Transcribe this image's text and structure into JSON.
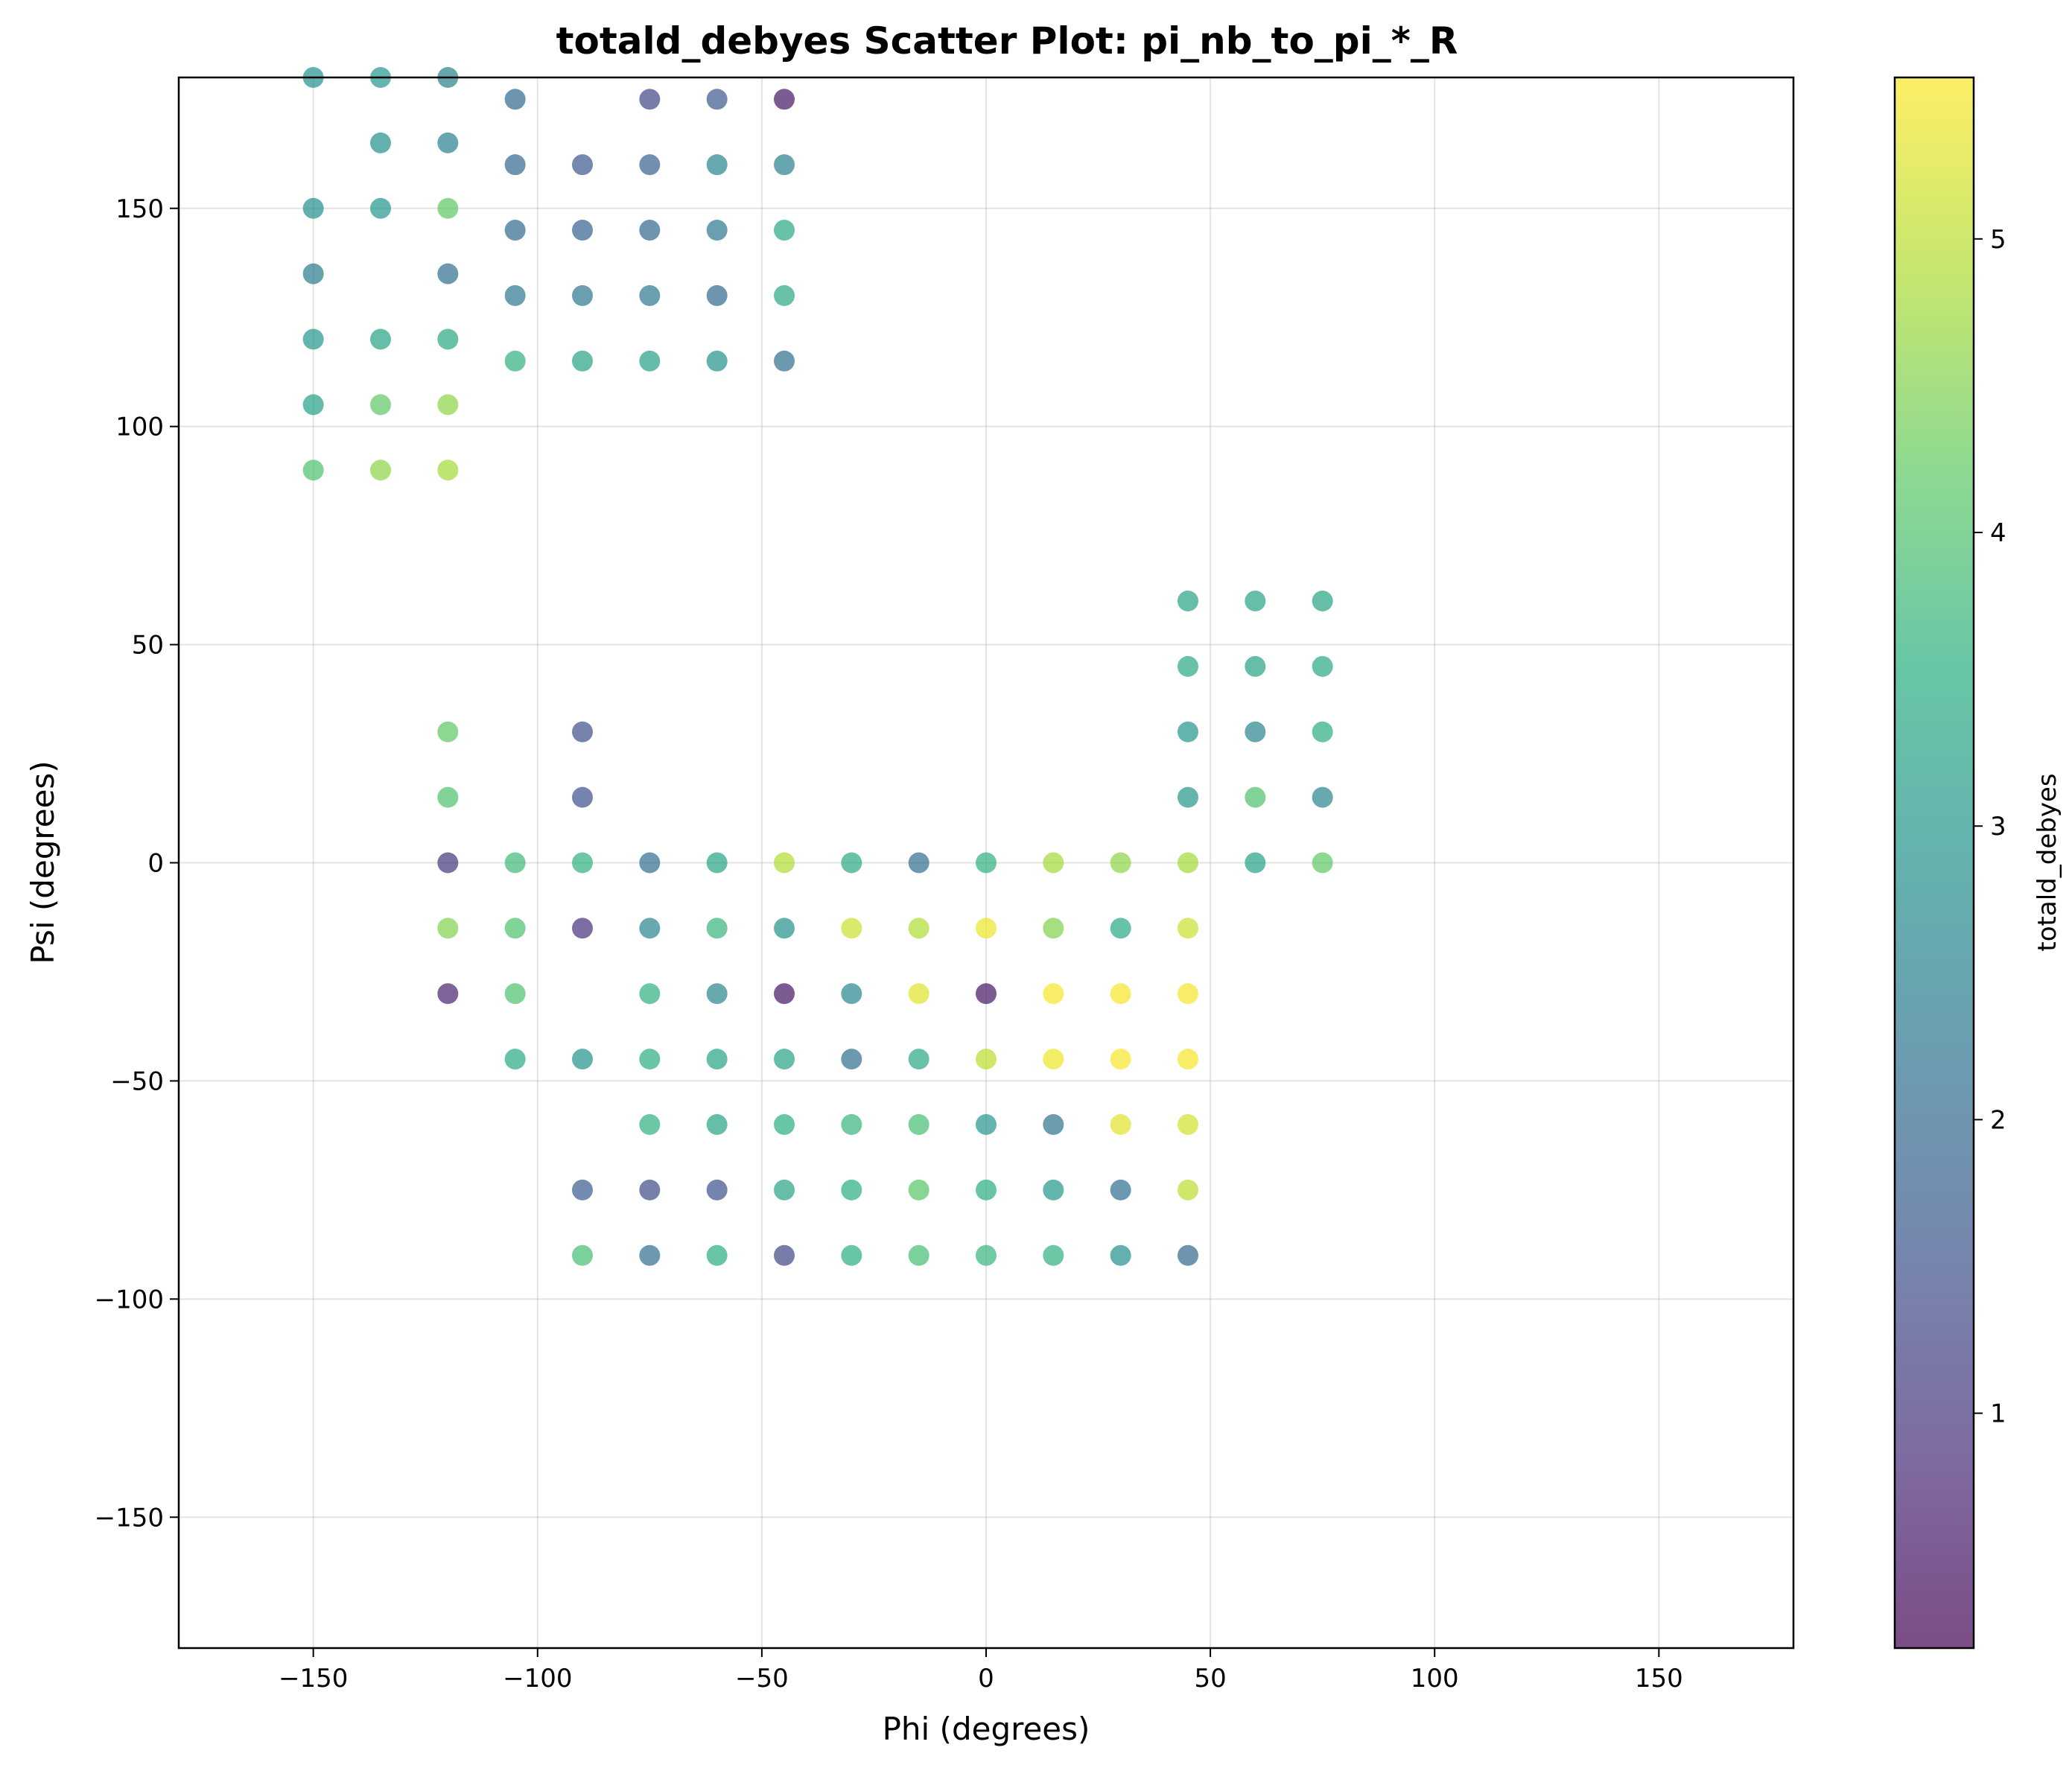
{
  "chart_data": {
    "type": "scatter",
    "title": "totald_debyes Scatter Plot: pi_nb_to_pi_*_R",
    "xlabel": "Phi (degrees)",
    "ylabel": "Psi (degrees)",
    "colorbar_label": "totald_debyes",
    "xlim": [
      -180,
      180
    ],
    "ylim": [
      -180,
      180
    ],
    "color_range": [
      0.2,
      5.55
    ],
    "colormap": "viridis",
    "marker_alpha": 0.7,
    "grid": true,
    "x_ticks": [
      -150,
      -100,
      -50,
      0,
      50,
      100,
      150
    ],
    "y_ticks": [
      -150,
      -100,
      -50,
      0,
      50,
      100,
      150
    ],
    "colorbar_ticks": [
      1,
      2,
      3,
      4,
      5
    ],
    "x_tick_labels": [
      "−150",
      "−100",
      "−50",
      "0",
      "50",
      "100",
      "150"
    ],
    "y_tick_labels": [
      "−150",
      "−100",
      "−50",
      "0",
      "50",
      "100",
      "150"
    ],
    "colorbar_tick_labels": [
      "1",
      "2",
      "3",
      "4",
      "5"
    ],
    "points": [
      {
        "x": -150,
        "y": 180,
        "c": 2.8
      },
      {
        "x": -135,
        "y": 180,
        "c": 3.0
      },
      {
        "x": -120,
        "y": 180,
        "c": 2.5
      },
      {
        "x": -105,
        "y": 175,
        "c": 2.0
      },
      {
        "x": -75,
        "y": 175,
        "c": 1.3
      },
      {
        "x": -60,
        "y": 175,
        "c": 1.6
      },
      {
        "x": -45,
        "y": 175,
        "c": 0.5
      },
      {
        "x": -135,
        "y": 165,
        "c": 2.8
      },
      {
        "x": -120,
        "y": 165,
        "c": 2.5
      },
      {
        "x": -105,
        "y": 160,
        "c": 2.0
      },
      {
        "x": -90,
        "y": 160,
        "c": 1.6
      },
      {
        "x": -75,
        "y": 160,
        "c": 1.8
      },
      {
        "x": -60,
        "y": 160,
        "c": 2.6
      },
      {
        "x": -45,
        "y": 160,
        "c": 2.5
      },
      {
        "x": -150,
        "y": 150,
        "c": 2.8
      },
      {
        "x": -135,
        "y": 150,
        "c": 3.0
      },
      {
        "x": -120,
        "y": 150,
        "c": 4.2
      },
      {
        "x": -105,
        "y": 145,
        "c": 2.0
      },
      {
        "x": -90,
        "y": 145,
        "c": 1.8
      },
      {
        "x": -75,
        "y": 145,
        "c": 2.0
      },
      {
        "x": -60,
        "y": 145,
        "c": 2.3
      },
      {
        "x": -45,
        "y": 145,
        "c": 3.4
      },
      {
        "x": -150,
        "y": 135,
        "c": 2.4
      },
      {
        "x": -120,
        "y": 135,
        "c": 2.1
      },
      {
        "x": -105,
        "y": 130,
        "c": 2.3
      },
      {
        "x": -90,
        "y": 130,
        "c": 2.3
      },
      {
        "x": -75,
        "y": 130,
        "c": 2.3
      },
      {
        "x": -60,
        "y": 130,
        "c": 2.0
      },
      {
        "x": -45,
        "y": 130,
        "c": 3.4
      },
      {
        "x": -150,
        "y": 120,
        "c": 3.0
      },
      {
        "x": -135,
        "y": 120,
        "c": 3.3
      },
      {
        "x": -120,
        "y": 120,
        "c": 3.4
      },
      {
        "x": -105,
        "y": 115,
        "c": 3.6
      },
      {
        "x": -90,
        "y": 115,
        "c": 3.3
      },
      {
        "x": -75,
        "y": 115,
        "c": 3.2
      },
      {
        "x": -60,
        "y": 115,
        "c": 2.9
      },
      {
        "x": -45,
        "y": 115,
        "c": 2.1
      },
      {
        "x": -150,
        "y": 105,
        "c": 3.2
      },
      {
        "x": -135,
        "y": 105,
        "c": 4.2
      },
      {
        "x": -120,
        "y": 105,
        "c": 4.6
      },
      {
        "x": -150,
        "y": 90,
        "c": 4.0
      },
      {
        "x": -135,
        "y": 90,
        "c": 4.6
      },
      {
        "x": -120,
        "y": 90,
        "c": 4.8
      },
      {
        "x": 45,
        "y": 60,
        "c": 3.3
      },
      {
        "x": 60,
        "y": 60,
        "c": 3.3
      },
      {
        "x": 75,
        "y": 60,
        "c": 3.3
      },
      {
        "x": 45,
        "y": 45,
        "c": 3.4
      },
      {
        "x": 60,
        "y": 45,
        "c": 3.3
      },
      {
        "x": 75,
        "y": 45,
        "c": 3.4
      },
      {
        "x": -120,
        "y": 30,
        "c": 4.2
      },
      {
        "x": -90,
        "y": 30,
        "c": 1.5
      },
      {
        "x": 45,
        "y": 30,
        "c": 3.0
      },
      {
        "x": 60,
        "y": 30,
        "c": 2.6
      },
      {
        "x": 75,
        "y": 30,
        "c": 3.5
      },
      {
        "x": -120,
        "y": 15,
        "c": 4.0
      },
      {
        "x": -90,
        "y": 15,
        "c": 1.5
      },
      {
        "x": 45,
        "y": 15,
        "c": 3.0
      },
      {
        "x": 60,
        "y": 15,
        "c": 4.0
      },
      {
        "x": 75,
        "y": 15,
        "c": 2.6
      },
      {
        "x": -120,
        "y": 0,
        "c": 1.0
      },
      {
        "x": -105,
        "y": 0,
        "c": 3.8
      },
      {
        "x": -90,
        "y": 0,
        "c": 3.6
      },
      {
        "x": -75,
        "y": 0,
        "c": 2.1
      },
      {
        "x": -60,
        "y": 0,
        "c": 3.3
      },
      {
        "x": -45,
        "y": 0,
        "c": 4.9
      },
      {
        "x": -30,
        "y": 0,
        "c": 3.4
      },
      {
        "x": -15,
        "y": 0,
        "c": 2.1
      },
      {
        "x": 0,
        "y": 0,
        "c": 3.6
      },
      {
        "x": 15,
        "y": 0,
        "c": 4.8
      },
      {
        "x": 30,
        "y": 0,
        "c": 4.6
      },
      {
        "x": 45,
        "y": 0,
        "c": 4.8
      },
      {
        "x": 60,
        "y": 0,
        "c": 3.2
      },
      {
        "x": 75,
        "y": 0,
        "c": 4.2
      },
      {
        "x": -120,
        "y": -15,
        "c": 4.5
      },
      {
        "x": -105,
        "y": -15,
        "c": 4.0
      },
      {
        "x": -90,
        "y": -15,
        "c": 0.9
      },
      {
        "x": -75,
        "y": -15,
        "c": 2.6
      },
      {
        "x": -60,
        "y": -15,
        "c": 3.7
      },
      {
        "x": -45,
        "y": -15,
        "c": 2.9
      },
      {
        "x": -30,
        "y": -15,
        "c": 5.1
      },
      {
        "x": -15,
        "y": -15,
        "c": 4.9
      },
      {
        "x": 0,
        "y": -15,
        "c": 5.4
      },
      {
        "x": 15,
        "y": -15,
        "c": 4.5
      },
      {
        "x": 30,
        "y": -15,
        "c": 3.4
      },
      {
        "x": 45,
        "y": -15,
        "c": 5.1
      },
      {
        "x": -120,
        "y": -30,
        "c": 0.7
      },
      {
        "x": -105,
        "y": -30,
        "c": 4.0
      },
      {
        "x": -75,
        "y": -30,
        "c": 3.6
      },
      {
        "x": -60,
        "y": -30,
        "c": 2.6
      },
      {
        "x": -45,
        "y": -30,
        "c": 0.5
      },
      {
        "x": -30,
        "y": -30,
        "c": 2.6
      },
      {
        "x": -15,
        "y": -30,
        "c": 5.3
      },
      {
        "x": 0,
        "y": -30,
        "c": 0.5
      },
      {
        "x": 15,
        "y": -30,
        "c": 5.5
      },
      {
        "x": 30,
        "y": -30,
        "c": 5.5
      },
      {
        "x": 45,
        "y": -30,
        "c": 5.5
      },
      {
        "x": -105,
        "y": -45,
        "c": 3.4
      },
      {
        "x": -90,
        "y": -45,
        "c": 2.9
      },
      {
        "x": -75,
        "y": -45,
        "c": 3.5
      },
      {
        "x": -60,
        "y": -45,
        "c": 3.3
      },
      {
        "x": -45,
        "y": -45,
        "c": 3.3
      },
      {
        "x": -30,
        "y": -45,
        "c": 2.1
      },
      {
        "x": -15,
        "y": -45,
        "c": 3.4
      },
      {
        "x": 0,
        "y": -45,
        "c": 5.0
      },
      {
        "x": 15,
        "y": -45,
        "c": 5.4
      },
      {
        "x": 30,
        "y": -45,
        "c": 5.5
      },
      {
        "x": 45,
        "y": -45,
        "c": 5.5
      },
      {
        "x": -75,
        "y": -60,
        "c": 3.6
      },
      {
        "x": -60,
        "y": -60,
        "c": 3.3
      },
      {
        "x": -45,
        "y": -60,
        "c": 3.5
      },
      {
        "x": -30,
        "y": -60,
        "c": 3.7
      },
      {
        "x": -15,
        "y": -60,
        "c": 3.9
      },
      {
        "x": 0,
        "y": -60,
        "c": 3.0
      },
      {
        "x": 15,
        "y": -60,
        "c": 2.2
      },
      {
        "x": 30,
        "y": -60,
        "c": 5.3
      },
      {
        "x": 45,
        "y": -60,
        "c": 5.2
      },
      {
        "x": -90,
        "y": -75,
        "c": 1.7
      },
      {
        "x": -75,
        "y": -75,
        "c": 1.4
      },
      {
        "x": -60,
        "y": -75,
        "c": 1.5
      },
      {
        "x": -45,
        "y": -75,
        "c": 3.3
      },
      {
        "x": -30,
        "y": -75,
        "c": 3.5
      },
      {
        "x": -15,
        "y": -75,
        "c": 4.1
      },
      {
        "x": 0,
        "y": -75,
        "c": 3.5
      },
      {
        "x": 15,
        "y": -75,
        "c": 3.0
      },
      {
        "x": 30,
        "y": -75,
        "c": 2.1
      },
      {
        "x": 45,
        "y": -75,
        "c": 5.0
      },
      {
        "x": -90,
        "y": -90,
        "c": 3.9
      },
      {
        "x": -75,
        "y": -90,
        "c": 2.1
      },
      {
        "x": -60,
        "y": -90,
        "c": 3.5
      },
      {
        "x": -45,
        "y": -90,
        "c": 1.3
      },
      {
        "x": -30,
        "y": -90,
        "c": 3.5
      },
      {
        "x": -15,
        "y": -90,
        "c": 3.9
      },
      {
        "x": 0,
        "y": -90,
        "c": 3.7
      },
      {
        "x": 15,
        "y": -90,
        "c": 3.6
      },
      {
        "x": 30,
        "y": -90,
        "c": 2.8
      },
      {
        "x": 45,
        "y": -90,
        "c": 2.0
      }
    ]
  }
}
